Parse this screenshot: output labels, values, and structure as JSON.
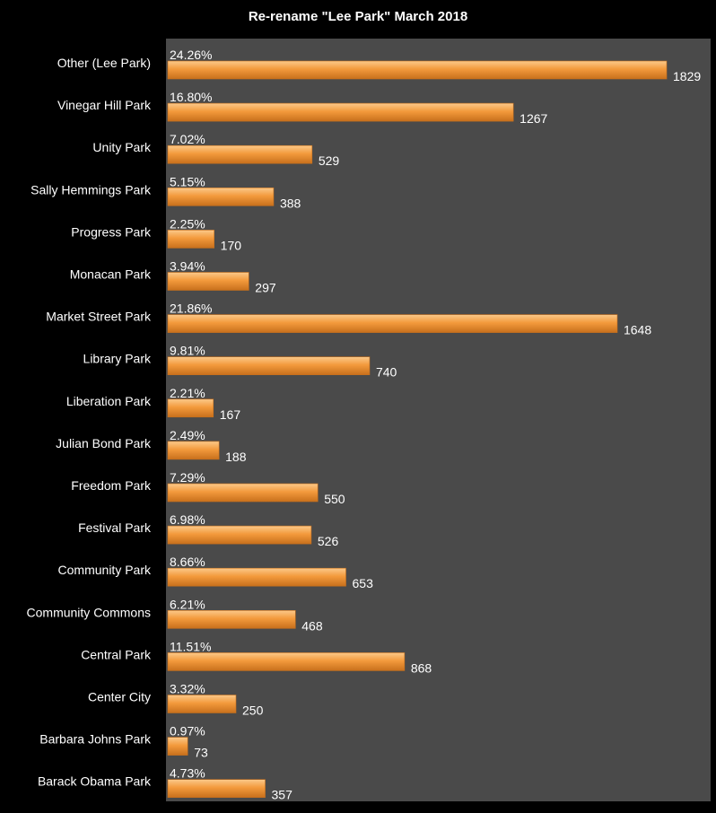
{
  "chart_data": {
    "type": "bar",
    "orientation": "horizontal",
    "title": "Re-rename \"Lee Park\" March 2018",
    "xlabel": "",
    "ylabel": "",
    "grid": false,
    "xlim": [
      0,
      2000
    ],
    "categories": [
      "Other (Lee Park)",
      "Vinegar Hill Park",
      "Unity Park",
      "Sally Hemmings Park",
      "Progress Park",
      "Monacan Park",
      "Market Street Park",
      "Library Park",
      "Liberation Park",
      "Julian Bond Park",
      "Freedom Park",
      "Festival Park",
      "Community Park",
      "Community Commons",
      "Central Park",
      "Center City",
      "Barbara Johns Park",
      "Barack Obama Park"
    ],
    "values": [
      1829,
      1267,
      529,
      388,
      170,
      297,
      1648,
      740,
      167,
      188,
      550,
      526,
      653,
      468,
      868,
      250,
      73,
      357
    ],
    "percent_labels": [
      "24.26%",
      "16.80%",
      "7.02%",
      "5.15%",
      "2.25%",
      "3.94%",
      "21.86%",
      "9.81%",
      "2.21%",
      "2.49%",
      "7.29%",
      "6.98%",
      "8.66%",
      "6.21%",
      "11.51%",
      "3.32%",
      "0.97%",
      "4.73%"
    ],
    "colors": {
      "background": "#000000",
      "plot_area": "#4a4a4a",
      "bar_light": "#fbc98a",
      "bar_mid": "#f39a3c",
      "bar_dark": "#c8701c",
      "text": "#ffffff"
    }
  }
}
